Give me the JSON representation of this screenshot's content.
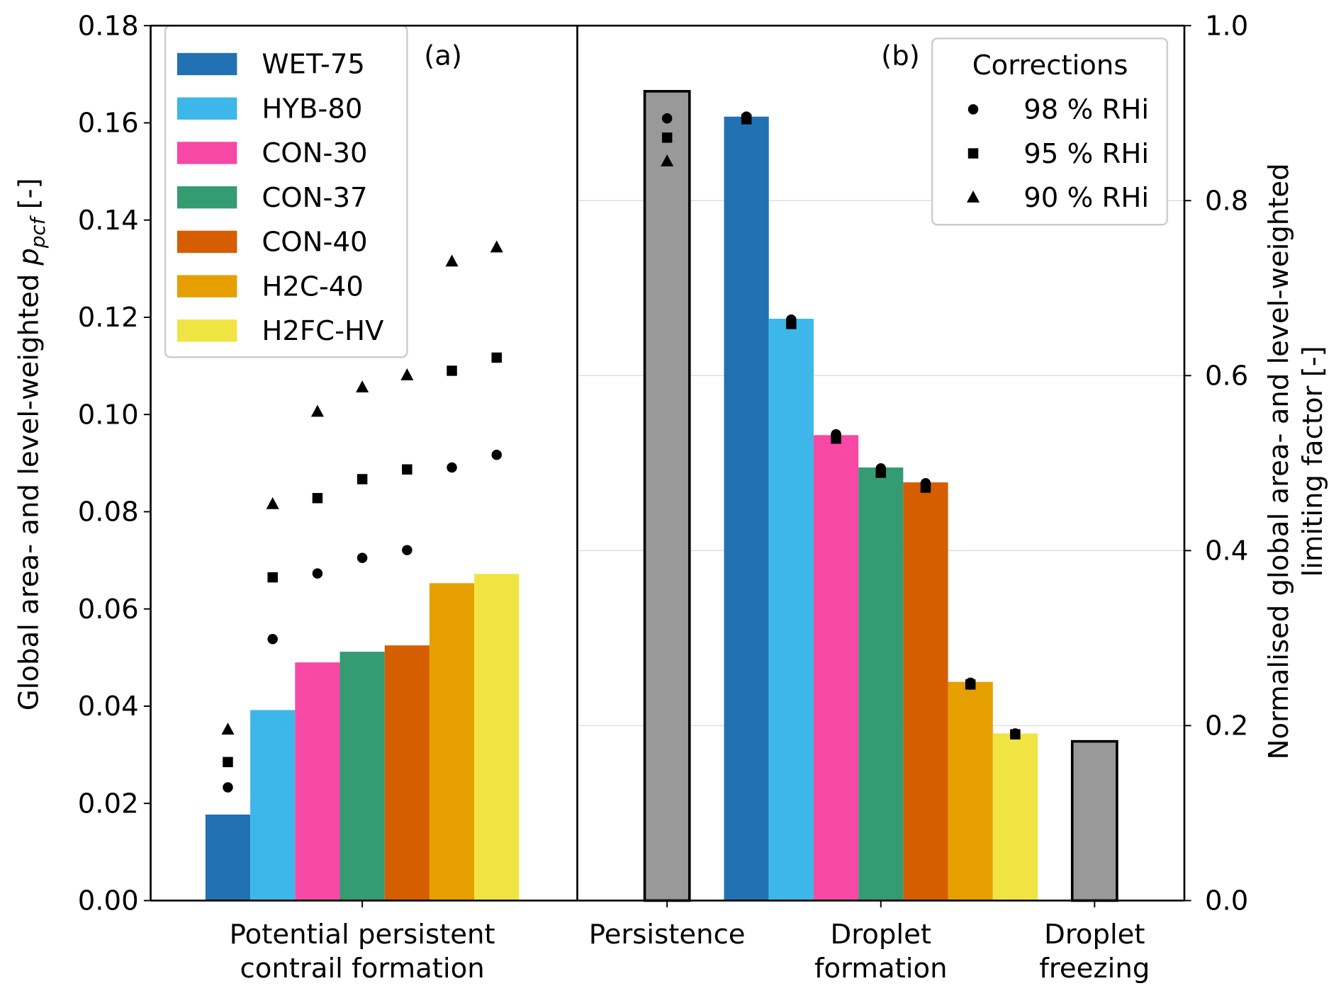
{
  "chart_data": [
    {
      "type": "bar",
      "annotation": "(a)",
      "ylabel": "Global area- and level-weighted",
      "ylabel_symbol": "p",
      "ylabel_subscript": "pcf",
      "ylabel_unit": "[-]",
      "categories": [
        "Potential persistent\ncontrail formation"
      ],
      "ylim": [
        0,
        0.18
      ],
      "yticks": [
        {
          "value": 0,
          "label": "0.00"
        },
        {
          "value": 0.02,
          "label": "0.02"
        },
        {
          "value": 0.04,
          "label": "0.04"
        },
        {
          "value": 0.06,
          "label": "0.06"
        },
        {
          "value": 0.08,
          "label": "0.08"
        },
        {
          "value": 0.1,
          "label": "0.10"
        },
        {
          "value": 0.12,
          "label": "0.12"
        },
        {
          "value": 0.14,
          "label": "0.14"
        },
        {
          "value": 0.16,
          "label": "0.16"
        },
        {
          "value": 0.18,
          "label": "0.18"
        }
      ],
      "legend": "upper left",
      "series": [
        {
          "name": "WET-75",
          "color": "#2271b3",
          "values": [
            0.0177
          ]
        },
        {
          "name": "HYB-80",
          "color": "#3db7e9",
          "values": [
            0.0392
          ]
        },
        {
          "name": "CON-30",
          "color": "#f748a5",
          "values": [
            0.049
          ]
        },
        {
          "name": "CON-37",
          "color": "#359b73",
          "values": [
            0.0512
          ]
        },
        {
          "name": "CON-40",
          "color": "#d55e00",
          "values": [
            0.0525
          ]
        },
        {
          "name": "H2C-40",
          "color": "#e69f00",
          "values": [
            0.0653
          ]
        },
        {
          "name": "H2FC-HV",
          "color": "#f0e442",
          "values": [
            0.0672
          ]
        }
      ],
      "corrections": [
        {
          "marker": "circle",
          "values": [
            0.0233,
            0.0538,
            0.0673,
            0.0705,
            0.0721,
            0.0891,
            0.0917
          ]
        },
        {
          "marker": "square",
          "values": [
            0.0285,
            0.0665,
            0.0828,
            0.0867,
            0.0887,
            0.109,
            0.1117
          ]
        },
        {
          "marker": "triangle",
          "values": [
            0.0352,
            0.0816,
            0.1006,
            0.1056,
            0.1081,
            0.1315,
            0.1344
          ]
        }
      ]
    },
    {
      "type": "bar",
      "annotation": "(b)",
      "y2label": "Normalised global area- and level-weighted\nlimiting factor [-]",
      "categories": [
        "Persistence",
        "Droplet\nformation",
        "Droplet\nfreezing"
      ],
      "y2lim": [
        0,
        1
      ],
      "y2ticks": [
        {
          "value": 0,
          "label": "0.0"
        },
        0.2,
        0.4,
        0.6,
        0.8,
        {
          "value": 1,
          "label": "1.0"
        }
      ],
      "grid": true,
      "reference": {
        "color": "#999999",
        "values": [
          0.925,
          null,
          0.182
        ]
      },
      "series": [
        {
          "color": "#2271b3",
          "values": [
            null,
            0.896,
            null
          ]
        },
        {
          "color": "#3db7e9",
          "values": [
            null,
            0.665,
            null
          ]
        },
        {
          "color": "#f748a5",
          "values": [
            null,
            0.532,
            null
          ]
        },
        {
          "color": "#359b73",
          "values": [
            null,
            0.495,
            null
          ]
        },
        {
          "color": "#d55e00",
          "values": [
            null,
            0.478,
            null
          ]
        },
        {
          "color": "#e69f00",
          "values": [
            null,
            0.25,
            null
          ]
        },
        {
          "color": "#f0e442",
          "values": [
            null,
            0.191,
            null
          ]
        }
      ],
      "legend_title": "Corrections",
      "legend": "upper right",
      "corrections": [
        {
          "name": "98 % RHi",
          "marker": "circle",
          "reference": 0.894,
          "values": [
            0.896,
            0.664,
            0.533,
            0.494,
            0.477,
            0.249,
            0.191
          ]
        },
        {
          "name": "95 % RHi",
          "marker": "square",
          "reference": 0.872,
          "values": [
            0.893,
            0.659,
            0.528,
            0.489,
            0.472,
            0.247,
            0.19
          ]
        },
        {
          "name": "90 % RHi",
          "marker": "triangle",
          "reference": 0.845,
          "values": [
            null,
            null,
            null,
            null,
            null,
            null,
            null
          ]
        }
      ]
    }
  ]
}
